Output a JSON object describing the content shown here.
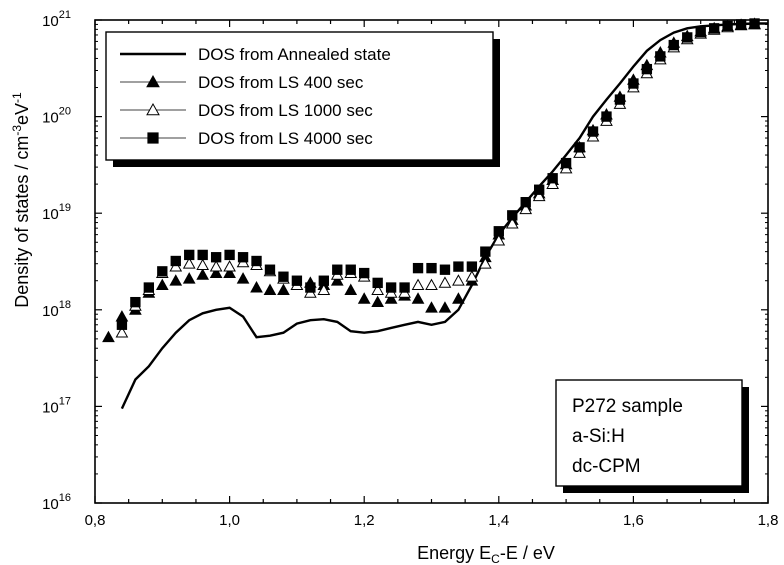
{
  "chart_data": {
    "type": "scatter",
    "xlabel": "Energy E",
    "xlabel_sub": "C",
    "xlabel_tail": "-E / eV",
    "ylabel": "Density of states / cm",
    "ylabel_sup": "-3",
    "ylabel_tail": "eV",
    "ylabel_sup2": "-1",
    "xlim": [
      0.8,
      1.8
    ],
    "ylim": [
      1e+16,
      1e+21
    ],
    "yscale": "log",
    "x_ticks": [
      "0,8",
      "1,0",
      "1,2",
      "1,4",
      "1,6",
      "1,8"
    ],
    "y_ticks": [
      {
        "base": "10",
        "exp": "16"
      },
      {
        "base": "10",
        "exp": "17"
      },
      {
        "base": "10",
        "exp": "18"
      },
      {
        "base": "10",
        "exp": "19"
      },
      {
        "base": "10",
        "exp": "20"
      },
      {
        "base": "10",
        "exp": "21"
      }
    ],
    "legend_position": "top-left",
    "annotation_lines": [
      "P272 sample",
      "a-Si:H",
      "dc-CPM"
    ],
    "annotation_position": "bottom-right",
    "series": [
      {
        "name": "DOS from Annealed state",
        "style": "line",
        "color": "#000000",
        "x": [
          0.84,
          0.86,
          0.88,
          0.9,
          0.92,
          0.94,
          0.96,
          0.98,
          1.0,
          1.02,
          1.04,
          1.06,
          1.08,
          1.1,
          1.12,
          1.14,
          1.16,
          1.18,
          1.2,
          1.22,
          1.24,
          1.26,
          1.28,
          1.3,
          1.32,
          1.34,
          1.36,
          1.38,
          1.4,
          1.42,
          1.44,
          1.46,
          1.48,
          1.5,
          1.52,
          1.54,
          1.56,
          1.58,
          1.6,
          1.62,
          1.64,
          1.66,
          1.68,
          1.7,
          1.72,
          1.74,
          1.76,
          1.78,
          1.8
        ],
        "y": [
          9.5e+16,
          1.9e+17,
          2.6e+17,
          4e+17,
          5.8e+17,
          7.8e+17,
          9.2e+17,
          1e+18,
          1.05e+18,
          8.5e+17,
          5.2e+17,
          5.4e+17,
          5.8e+17,
          7.2e+17,
          7.8e+17,
          8e+17,
          7.5e+17,
          6e+17,
          5.8e+17,
          6e+17,
          6.5e+17,
          7e+17,
          7.5e+17,
          7e+17,
          7.5e+17,
          1e+18,
          1.8e+18,
          3.5e+18,
          6e+18,
          9e+18,
          1.3e+19,
          1.9e+19,
          2.7e+19,
          4e+19,
          6e+19,
          1e+20,
          1.5e+20,
          2.2e+20,
          3.3e+20,
          4.8e+20,
          6.2e+20,
          7.4e+20,
          8.2e+20,
          8.6e+20,
          8.8e+20,
          9e+20,
          9.1e+20,
          9.2e+20,
          9.2e+20
        ]
      },
      {
        "name": "DOS from LS 400 sec",
        "style": "filled-triangle",
        "color": "#000000",
        "x": [
          0.82,
          0.84,
          0.86,
          0.88,
          0.9,
          0.92,
          0.94,
          0.96,
          0.98,
          1.0,
          1.02,
          1.04,
          1.06,
          1.08,
          1.1,
          1.12,
          1.14,
          1.16,
          1.18,
          1.2,
          1.22,
          1.24,
          1.26,
          1.28,
          1.3,
          1.32,
          1.34,
          1.36,
          1.38,
          1.4,
          1.42,
          1.44,
          1.46,
          1.48,
          1.5,
          1.52,
          1.54,
          1.56,
          1.58,
          1.6,
          1.62,
          1.64,
          1.66,
          1.68,
          1.7,
          1.72,
          1.74,
          1.76,
          1.78
        ],
        "y": [
          5.2e+17,
          8.5e+17,
          1e+18,
          1.5e+18,
          1.8e+18,
          2e+18,
          2.1e+18,
          2.3e+18,
          2.4e+18,
          2.4e+18,
          2.1e+18,
          1.7e+18,
          1.6e+18,
          1.6e+18,
          1.8e+18,
          1.9e+18,
          1.8e+18,
          2e+18,
          1.6e+18,
          1.3e+18,
          1.2e+18,
          1.3e+18,
          1.4e+18,
          1.3e+18,
          1.05e+18,
          1.05e+18,
          1.3e+18,
          2e+18,
          3.5e+18,
          6e+18,
          8.5e+18,
          1.2e+19,
          1.6e+19,
          2.2e+19,
          3.2e+19,
          4.8e+19,
          7.2e+19,
          1.05e+20,
          1.6e+20,
          2.4e+20,
          3.4e+20,
          4.6e+20,
          5.8e+20,
          6.8e+20,
          7.6e+20,
          8.2e+20,
          8.6e+20,
          8.9e+20,
          9.1e+20
        ]
      },
      {
        "name": "DOS from LS 1000 sec",
        "style": "open-triangle",
        "color": "#000000",
        "x": [
          0.84,
          0.86,
          0.88,
          0.9,
          0.92,
          0.94,
          0.96,
          0.98,
          1.0,
          1.02,
          1.04,
          1.06,
          1.08,
          1.1,
          1.12,
          1.14,
          1.16,
          1.18,
          1.2,
          1.22,
          1.24,
          1.26,
          1.28,
          1.3,
          1.32,
          1.34,
          1.36,
          1.38,
          1.4,
          1.42,
          1.44,
          1.46,
          1.48,
          1.5,
          1.52,
          1.54,
          1.56,
          1.58,
          1.6,
          1.62,
          1.64,
          1.66,
          1.68,
          1.7,
          1.72,
          1.74,
          1.76,
          1.78
        ],
        "y": [
          5.8e+17,
          1.1e+18,
          1.6e+18,
          2.4e+18,
          2.8e+18,
          3e+18,
          2.9e+18,
          2.8e+18,
          2.8e+18,
          3.1e+18,
          2.9e+18,
          2.5e+18,
          2.1e+18,
          1.8e+18,
          1.5e+18,
          1.6e+18,
          2.3e+18,
          2.4e+18,
          2.2e+18,
          1.6e+18,
          1.5e+18,
          1.5e+18,
          1.8e+18,
          1.8e+18,
          1.9e+18,
          2e+18,
          2.2e+18,
          3e+18,
          5.2e+18,
          7.8e+18,
          1.1e+19,
          1.5e+19,
          2e+19,
          2.9e+19,
          4.2e+19,
          6.2e+19,
          9e+19,
          1.35e+20,
          2e+20,
          2.8e+20,
          3.9e+20,
          5.2e+20,
          6.3e+20,
          7.2e+20,
          7.9e+20,
          8.4e+20,
          8.8e+20,
          9e+20
        ]
      },
      {
        "name": "DOS from LS 4000 sec",
        "style": "filled-square",
        "color": "#000000",
        "x": [
          0.84,
          0.86,
          0.88,
          0.9,
          0.92,
          0.94,
          0.96,
          0.98,
          1.0,
          1.02,
          1.04,
          1.06,
          1.08,
          1.1,
          1.12,
          1.14,
          1.16,
          1.18,
          1.2,
          1.22,
          1.24,
          1.26,
          1.28,
          1.3,
          1.32,
          1.34,
          1.36,
          1.38,
          1.4,
          1.42,
          1.44,
          1.46,
          1.48,
          1.5,
          1.52,
          1.54,
          1.56,
          1.58,
          1.6,
          1.62,
          1.64,
          1.66,
          1.68,
          1.7,
          1.72,
          1.74,
          1.76,
          1.78
        ],
        "y": [
          7e+17,
          1.2e+18,
          1.7e+18,
          2.5e+18,
          3.2e+18,
          3.7e+18,
          3.7e+18,
          3.5e+18,
          3.7e+18,
          3.5e+18,
          3.2e+18,
          2.6e+18,
          2.2e+18,
          2e+18,
          1.7e+18,
          2e+18,
          2.6e+18,
          2.6e+18,
          2.4e+18,
          1.9e+18,
          1.7e+18,
          1.7e+18,
          2.7e+18,
          2.7e+18,
          2.6e+18,
          2.8e+18,
          2.8e+18,
          4e+18,
          6.5e+18,
          9.5e+18,
          1.3e+19,
          1.75e+19,
          2.3e+19,
          3.3e+19,
          4.8e+19,
          7e+19,
          1e+20,
          1.5e+20,
          2.2e+20,
          3.1e+20,
          4.2e+20,
          5.5e+20,
          6.6e+20,
          7.5e+20,
          8.2e+20,
          8.7e+20,
          9e+20,
          9.2e+20
        ]
      }
    ]
  }
}
